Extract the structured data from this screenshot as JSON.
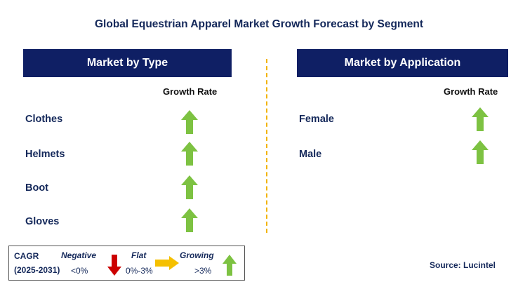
{
  "title": "Global Equestrian Apparel Market Growth Forecast by Segment",
  "panels": [
    {
      "header": "Market by Type",
      "column_label": "Growth Rate",
      "rows": [
        {
          "label": "Clothes",
          "trend": "growing"
        },
        {
          "label": "Helmets",
          "trend": "growing"
        },
        {
          "label": "Boot",
          "trend": "growing"
        },
        {
          "label": "Gloves",
          "trend": "growing"
        }
      ]
    },
    {
      "header": "Market by Application",
      "column_label": "Growth Rate",
      "rows": [
        {
          "label": "Female",
          "trend": "growing"
        },
        {
          "label": "Male",
          "trend": "growing"
        }
      ]
    }
  ],
  "legend": {
    "cagr_label": "CAGR",
    "period": "(2025-2031)",
    "negative": {
      "label": "Negative",
      "range": "<0%",
      "color": "#cc0000",
      "icon": "down-arrow-icon"
    },
    "flat": {
      "label": "Flat",
      "range": "0%-3%",
      "color": "#f5c000",
      "icon": "right-arrow-icon"
    },
    "growing": {
      "label": "Growing",
      "range": ">3%",
      "color": "#7dc242",
      "icon": "up-arrow-icon"
    }
  },
  "source": "Source: Lucintel"
}
